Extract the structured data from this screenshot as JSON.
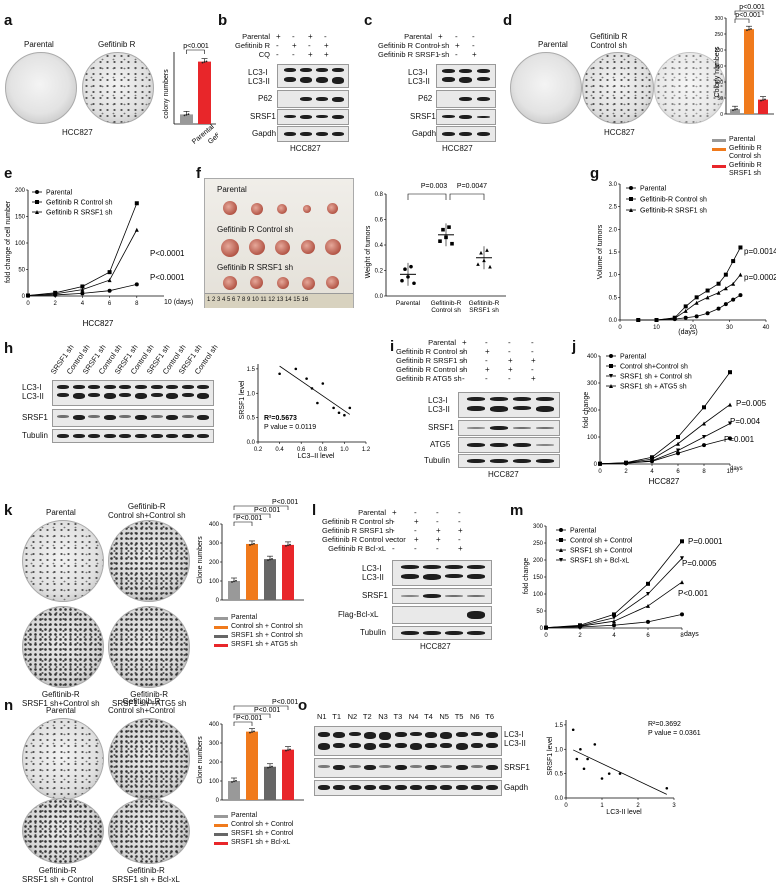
{
  "panels": {
    "a": {
      "label": "a",
      "dish_labels": [
        "Parental",
        "Gefitinib R"
      ],
      "cell_line": "HCC827",
      "pvalue": "p<0.001",
      "chart": {
        "ylabel": "colony numbers",
        "categories": [
          "Parental",
          "Gefitinib R"
        ]
      }
    },
    "b": {
      "label": "b",
      "rows": [
        {
          "name": "Parental",
          "marks": [
            "+",
            "-",
            "+",
            "-"
          ]
        },
        {
          "name": "Gefitinib R",
          "marks": [
            "-",
            "+",
            "-",
            "+"
          ]
        },
        {
          "name": "CQ",
          "marks": [
            "-",
            "-",
            "+",
            "+"
          ]
        }
      ],
      "blots": [
        "LC3-I\nLC3-II",
        "P62",
        "SRSF1",
        "Gapdh"
      ],
      "cell_line": "HCC827"
    },
    "c": {
      "label": "c",
      "rows": [
        {
          "name": "Parental",
          "marks": [
            "+",
            "-",
            "-"
          ]
        },
        {
          "name": "Gefitinib R Control sh",
          "marks": [
            "-",
            "+",
            "-"
          ]
        },
        {
          "name": "Gefitinib R SRSF1 sh",
          "marks": [
            "-",
            "-",
            "+"
          ]
        }
      ],
      "blots": [
        "LC3-I\nLC3-II",
        "P62",
        "SRSF1",
        "Gapdh"
      ],
      "cell_line": "HCC827"
    },
    "d": {
      "label": "d",
      "dish_labels": [
        "Parental",
        "Gefitinib R\nControl sh",
        ""
      ],
      "cell_line": "HCC827",
      "pvalues": [
        "p<0.001",
        "p<0.001"
      ],
      "chart": {
        "ylabel": "Colony numbers",
        "yticks": [
          "0",
          "50",
          "100",
          "150",
          "200",
          "250",
          "300"
        ]
      },
      "legend": [
        "Parental",
        "Gefitinib R\nControl sh",
        "Gefitinib R\nSRSF1 sh"
      ]
    },
    "e": {
      "label": "e",
      "ylabel": "fold change of cell number",
      "xlabel": "HCC827",
      "xunit": "10 (days)",
      "legend": [
        "Parental",
        "Gefitinib R Control sh",
        "Gefitinib R SRSF1 sh"
      ],
      "pvalues": [
        "P<0.0001",
        "P<0.0001"
      ],
      "yticks": [
        "0",
        "50",
        "100",
        "150",
        "200"
      ],
      "xticks": [
        "0",
        "2",
        "4",
        "6",
        "8"
      ]
    },
    "f": {
      "label": "f",
      "photo_labels": [
        "Parental",
        "Gefitinib R Control sh",
        "Gefitinib R SRSF1 sh"
      ],
      "ruler": "1 2 3 4 5 6 7 8 9 10 11 12 13 14 15 16",
      "ylabel": "Weight of tumors",
      "pvalues": [
        "P=0.003",
        "P=0.0047"
      ],
      "yticks": [
        "0.0",
        "0.2",
        "0.4",
        "0.6",
        "0.8"
      ],
      "categories": [
        "Parental",
        "Gefitinib-R\nControl sh",
        "Gefitinib-R\nSRSF1 sh"
      ]
    },
    "g": {
      "label": "g",
      "ylabel": "Volume of tumors",
      "xlabel": "(days)",
      "legend": [
        "Parental",
        "Gefitinib-R Control sh",
        "Gefitinib-R SRSF1 sh"
      ],
      "pvalues": [
        "p=0.0014",
        "p=0.0002"
      ],
      "yticks": [
        "0.0",
        "0.5",
        "1.0",
        "1.5",
        "2.0",
        "2.5",
        "3.0"
      ],
      "xticks": [
        "0",
        "10",
        "20",
        "30",
        "40"
      ]
    },
    "h": {
      "label": "h",
      "lanes": [
        "SRSF1 sh",
        "Control sh",
        "SRSF1 sh",
        "Control sh",
        "SRSF1 sh",
        "Control sh",
        "SRSF1 sh",
        "Control sh",
        "SRSF1 sh",
        "Control sh"
      ],
      "blots": [
        "LC3-I\nLC3-II",
        "SRSF1",
        "Tubulin"
      ],
      "scatter": {
        "ylabel": "SRSF1 level",
        "xlabel": "LC3–II level",
        "r2": "R²=0.5673",
        "pvalue": "P value = 0.0119",
        "xticks": [
          "0.2",
          "0.4",
          "0.6",
          "0.8",
          "1.0",
          "1.2"
        ],
        "yticks": [
          "0.0",
          "0.5",
          "1.0",
          "1.5"
        ]
      }
    },
    "i": {
      "label": "i",
      "rows": [
        {
          "name": "Parental",
          "marks": [
            "+",
            "-",
            "-",
            "-"
          ]
        },
        {
          "name": "Gefitinib R Control sh",
          "marks": [
            "-",
            "+",
            "-",
            "-"
          ]
        },
        {
          "name": "Gefitinib R SRSF1 sh",
          "marks": [
            "-",
            "-",
            "+",
            "+"
          ]
        },
        {
          "name": "Gefitinib R Control sh",
          "marks": [
            "-",
            "+",
            "+",
            "-"
          ]
        },
        {
          "name": "Gefitinib R ATG5 sh",
          "marks": [
            "-",
            "-",
            "-",
            "+"
          ]
        }
      ],
      "blots": [
        "LC3-I\nLC3-II",
        "SRSF1",
        "ATG5",
        "Tubulin"
      ],
      "cell_line": "HCC827"
    },
    "j": {
      "label": "j",
      "ylabel": "fold change",
      "xlabel": "HCC827",
      "xunit": "days",
      "legend": [
        "Parental",
        "Control sh+Control sh",
        "SRSF1 sh + Control sh",
        "SRSF1 sh + ATG5 sh"
      ],
      "pvalues": [
        "P=0.005",
        "P=0.004",
        "P=0.001"
      ],
      "yticks": [
        "0",
        "100",
        "200",
        "300",
        "400"
      ],
      "xticks": [
        "0",
        "2",
        "4",
        "6",
        "8",
        "10"
      ]
    },
    "k": {
      "label": "k",
      "dish_labels": [
        "Parental",
        "Gefitinib-R\nControl sh+Control sh",
        "Gefitinib-R\nSRSF1 sh+Control sh",
        "Gefitinib-R\nSRSF1 sh +ATG5 sh"
      ],
      "ylabel": "Clone numbers",
      "pvalues": [
        "P<0.001",
        "P<0.001",
        "P<0.001"
      ],
      "yticks": [
        "0",
        "100",
        "200",
        "300",
        "400"
      ],
      "legend": [
        "Parental",
        "Control sh + Control sh",
        "SRSF1 sh + Control sh",
        "SRSF1 sh + ATG5 sh"
      ]
    },
    "l": {
      "label": "l",
      "rows": [
        {
          "name": "Parental",
          "marks": [
            "+",
            "-",
            "-",
            "-"
          ]
        },
        {
          "name": "Gefitinib R Control sh",
          "marks": [
            "-",
            "+",
            "-",
            "-"
          ]
        },
        {
          "name": "Gefitinib R SRSF1 sh",
          "marks": [
            "-",
            "-",
            "+",
            "+"
          ]
        },
        {
          "name": "Gefitinib R Control vector",
          "marks": [
            "-",
            "+",
            "+",
            "-"
          ]
        },
        {
          "name": "Gefitinib R Bcl-xL",
          "marks": [
            "-",
            "-",
            "-",
            "+"
          ]
        }
      ],
      "blots": [
        "LC3-I\nLC3-II",
        "SRSF1",
        "Flag-Bcl-xL",
        "Tubulin"
      ],
      "cell_line": "HCC827"
    },
    "m": {
      "label": "m",
      "ylabel": "fold change",
      "xunit": "days",
      "legend": [
        "Parental",
        "Control sh + Control",
        "SRSF1 sh + Control",
        "SRSF1 sh + Bcl-xL"
      ],
      "pvalues": [
        "P=0.0001",
        "P=0.0005",
        "P<0.001"
      ],
      "yticks": [
        "0",
        "50",
        "100",
        "150",
        "200",
        "250",
        "300"
      ],
      "xticks": [
        "0",
        "2",
        "4",
        "6",
        "8"
      ]
    },
    "n": {
      "label": "n",
      "dish_labels": [
        "Parental",
        "Gefitinib-R\nControl sh+Control",
        "Gefitinib-R\nSRSF1 sh + Control",
        "Gefitinib-R\nSRSF1 sh + Bcl-xL"
      ],
      "ylabel": "Clone numbers",
      "pvalues": [
        "P<0.001",
        "P<0.001",
        "P<0.001"
      ],
      "yticks": [
        "0",
        "100",
        "200",
        "300",
        "400"
      ],
      "legend": [
        "Parental",
        "Control sh + Control",
        "SRSF1 sh + Control",
        "SRSF1 sh + Bcl-xL"
      ]
    },
    "o": {
      "label": "o",
      "lanes": [
        "N1",
        "T1",
        "N2",
        "T2",
        "N3",
        "T3",
        "N4",
        "T4",
        "N5",
        "T5",
        "N6",
        "T6"
      ],
      "blots": [
        "LC3-I\nLC3-II",
        "SRSF1",
        "Gapdh"
      ],
      "scatter": {
        "ylabel": "SRSF1 level",
        "xlabel": "LC3-II level",
        "r2": "R²=0.3692",
        "pvalue": "P value = 0.0361",
        "xticks": [
          "0",
          "1",
          "2",
          "3"
        ],
        "yticks": [
          "0.0",
          "0.5",
          "1.0",
          "1.5"
        ]
      }
    }
  },
  "colors": {
    "parental": "#999999",
    "control": "#f07a1c",
    "srsf1": "#666666",
    "rescue": "#e8262a",
    "red": "#e8262a"
  },
  "chart_data": [
    {
      "panel": "a",
      "type": "bar",
      "categories": [
        "Parental",
        "Gefitinib R"
      ],
      "values": [
        20,
        130
      ],
      "ylim": [
        0,
        150
      ]
    },
    {
      "panel": "d",
      "type": "bar",
      "categories": [
        "Parental",
        "Gefitinib R Control sh",
        "Gefitinib R SRSF1 sh"
      ],
      "values": [
        15,
        265,
        45
      ],
      "ylim": [
        0,
        300
      ]
    },
    {
      "panel": "e",
      "type": "line",
      "x": [
        0,
        2,
        4,
        6,
        8
      ],
      "series": [
        {
          "name": "Parental",
          "values": [
            1,
            2,
            5,
            10,
            22
          ]
        },
        {
          "name": "Gefitinib R Control sh",
          "values": [
            1,
            6,
            18,
            45,
            175
          ]
        },
        {
          "name": "Gefitinib R SRSF1 sh",
          "values": [
            1,
            4,
            12,
            30,
            125
          ]
        }
      ],
      "ylim": [
        0,
        200
      ],
      "xlim": [
        0,
        10
      ]
    },
    {
      "panel": "f",
      "type": "scatter",
      "categories": [
        "Parental",
        "Gefitinib-R Control sh",
        "Gefitinib-R SRSF1 sh"
      ],
      "means": [
        0.17,
        0.48,
        0.3
      ],
      "ylim": [
        0,
        0.8
      ]
    },
    {
      "panel": "g",
      "type": "line",
      "x": [
        5,
        10,
        15,
        18,
        21,
        24,
        27,
        29,
        31,
        33
      ],
      "series": [
        {
          "name": "Parental",
          "values": [
            0,
            0,
            0.02,
            0.05,
            0.08,
            0.15,
            0.25,
            0.35,
            0.45,
            0.55
          ]
        },
        {
          "name": "Gefitinib-R Control sh",
          "values": [
            0,
            0,
            0.05,
            0.3,
            0.5,
            0.65,
            0.8,
            1.0,
            1.3,
            1.6
          ]
        },
        {
          "name": "Gefitinib-R SRSF1 sh",
          "values": [
            0,
            0,
            0.04,
            0.2,
            0.38,
            0.5,
            0.6,
            0.7,
            0.8,
            1.0
          ]
        }
      ],
      "ylim": [
        0,
        3
      ],
      "xlim": [
        0,
        40
      ]
    },
    {
      "panel": "j",
      "type": "line",
      "x": [
        0,
        2,
        4,
        6,
        8,
        10
      ],
      "series": [
        {
          "name": "Parental",
          "values": [
            1,
            3,
            10,
            40,
            70,
            95
          ]
        },
        {
          "name": "Control sh+Control sh",
          "values": [
            1,
            5,
            25,
            100,
            210,
            340
          ]
        },
        {
          "name": "SRSF1 sh + Control sh",
          "values": [
            1,
            3,
            12,
            50,
            100,
            150
          ]
        },
        {
          "name": "SRSF1 sh + ATG5 sh",
          "values": [
            1,
            4,
            18,
            75,
            150,
            220
          ]
        }
      ],
      "ylim": [
        0,
        400
      ]
    },
    {
      "panel": "k",
      "type": "bar",
      "categories": [
        "Parental",
        "Control sh + Control sh",
        "SRSF1 sh + Control sh",
        "SRSF1 sh + ATG5 sh"
      ],
      "values": [
        100,
        295,
        215,
        290
      ],
      "ylim": [
        0,
        400
      ]
    },
    {
      "panel": "m",
      "type": "line",
      "x": [
        0,
        2,
        4,
        6,
        8
      ],
      "series": [
        {
          "name": "Parental",
          "values": [
            1,
            3,
            8,
            18,
            40
          ]
        },
        {
          "name": "Control sh + Control",
          "values": [
            1,
            8,
            40,
            130,
            255
          ]
        },
        {
          "name": "SRSF1 sh + Control",
          "values": [
            1,
            5,
            20,
            65,
            135
          ]
        },
        {
          "name": "SRSF1 sh + Bcl-xL",
          "values": [
            1,
            6,
            30,
            100,
            205
          ]
        }
      ],
      "ylim": [
        0,
        300
      ]
    },
    {
      "panel": "n",
      "type": "bar",
      "categories": [
        "Parental",
        "Control sh + Control",
        "SRSF1 sh + Control",
        "SRSF1 sh + Bcl-xL"
      ],
      "values": [
        100,
        360,
        175,
        265
      ],
      "ylim": [
        0,
        400
      ]
    },
    {
      "panel": "h",
      "type": "scatter",
      "x": [
        0.4,
        0.55,
        0.65,
        0.7,
        0.75,
        0.8,
        0.9,
        0.95,
        1.0,
        1.05
      ],
      "y": [
        1.4,
        1.5,
        1.3,
        1.1,
        0.8,
        1.2,
        0.7,
        0.6,
        0.55,
        0.7
      ]
    },
    {
      "panel": "o",
      "type": "scatter",
      "x": [
        0.2,
        0.3,
        0.4,
        0.5,
        0.6,
        0.8,
        1.0,
        1.2,
        1.5,
        2.8
      ],
      "y": [
        1.4,
        0.8,
        1.0,
        0.6,
        0.8,
        1.1,
        0.4,
        0.5,
        0.5,
        0.2
      ]
    }
  ]
}
